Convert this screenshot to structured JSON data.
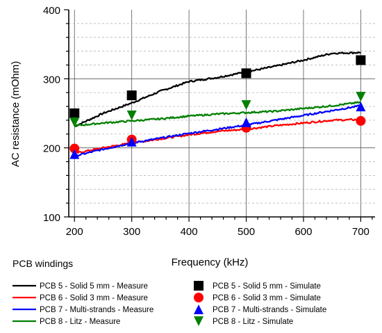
{
  "chart_data": {
    "type": "line",
    "title": "",
    "xlabel": "Frequency (kHz)",
    "ylabel": "AC resistance (mOhm)",
    "xlim": [
      190,
      725
    ],
    "ylim": [
      100,
      400
    ],
    "x_ticks": [
      200,
      300,
      400,
      500,
      600,
      700
    ],
    "y_ticks": [
      100,
      200,
      300,
      400
    ],
    "grid": true,
    "legend_title": "PCB windings",
    "legend_position": "bottom",
    "series": [
      {
        "name": "PCB 5 - Solid 5 mm - Measure",
        "kind": "measure",
        "color": "#000000",
        "x": [
          200,
          250,
          300,
          350,
          400,
          450,
          500,
          550,
          600,
          650,
          700
        ],
        "y": [
          231,
          250,
          265,
          282,
          296,
          302,
          310,
          318,
          327,
          337,
          338
        ]
      },
      {
        "name": "PCB 6 - Solid 3 mm - Measure",
        "kind": "measure",
        "color": "#ff0000",
        "x": [
          200,
          250,
          300,
          350,
          400,
          450,
          500,
          550,
          600,
          650,
          700
        ],
        "y": [
          192,
          200,
          207,
          213,
          219,
          224,
          227,
          232,
          236,
          240,
          241
        ]
      },
      {
        "name": "PCB 7 - Multi-strands - Measure",
        "kind": "measure",
        "color": "#0000ff",
        "x": [
          200,
          250,
          300,
          350,
          400,
          450,
          500,
          550,
          600,
          650,
          700
        ],
        "y": [
          188,
          198,
          207,
          214,
          221,
          227,
          233,
          240,
          247,
          254,
          261
        ]
      },
      {
        "name": "PCB 8 - Litz - Measure",
        "kind": "measure",
        "color": "#008000",
        "x": [
          200,
          250,
          300,
          350,
          400,
          450,
          500,
          550,
          600,
          650,
          700
        ],
        "y": [
          232,
          236,
          239,
          242,
          246,
          249,
          251,
          253,
          257,
          261,
          266
        ]
      },
      {
        "name": "PCB 5 - Solid 5 mm - Simulate",
        "kind": "simulate",
        "marker": "square",
        "color": "#000000",
        "x": [
          200,
          300,
          500,
          700
        ],
        "y": [
          250,
          276,
          308,
          327
        ]
      },
      {
        "name": "PCB 6 - Solid 3 mm - Simulate",
        "kind": "simulate",
        "marker": "circle",
        "color": "#ff0000",
        "x": [
          200,
          300,
          500,
          700
        ],
        "y": [
          199,
          212,
          229,
          239
        ]
      },
      {
        "name": "PCB 7 - Multi-strands - Simulate",
        "kind": "simulate",
        "marker": "triangle-up",
        "color": "#0000ff",
        "x": [
          200,
          300,
          500,
          700
        ],
        "y": [
          191,
          209,
          237,
          260
        ]
      },
      {
        "name": "PCB 8 - Litz - Simulate",
        "kind": "simulate",
        "marker": "triangle-down",
        "color": "#008000",
        "x": [
          200,
          300,
          500,
          700
        ],
        "y": [
          237,
          247,
          262,
          274
        ]
      }
    ]
  }
}
